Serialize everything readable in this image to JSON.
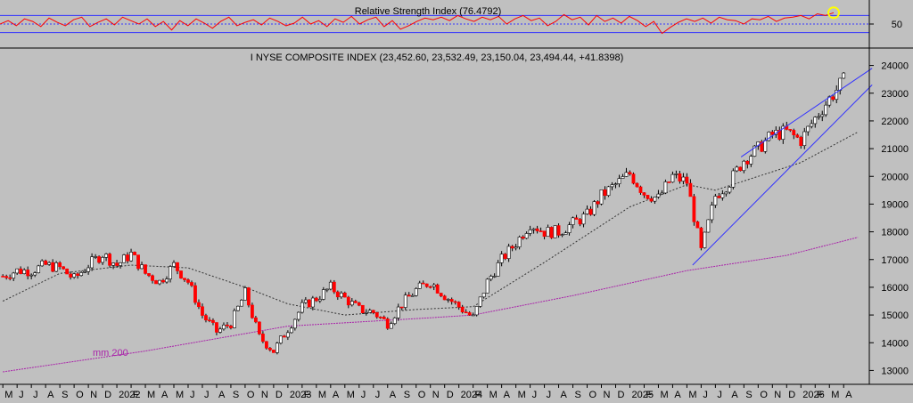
{
  "chart_data": [
    {
      "type": "line",
      "title": "Relative Strength Index (76.4792)",
      "ylim": [
        0,
        100
      ],
      "reference_levels": [
        30,
        50,
        70
      ],
      "y_ticks": [
        "50"
      ],
      "series": [
        {
          "color": "#ff0000",
          "values": [
            50,
            58,
            46,
            62,
            56,
            44,
            64,
            54,
            46,
            60,
            66,
            44,
            54,
            62,
            48,
            66,
            58,
            50,
            62,
            44,
            56,
            36,
            58,
            46,
            62,
            52,
            40,
            56,
            66,
            46,
            54,
            60,
            48,
            64,
            56,
            46,
            52,
            66,
            50,
            58,
            44,
            62,
            54,
            68,
            50,
            60,
            66,
            44,
            58,
            38,
            46,
            56,
            64,
            60,
            66,
            58,
            70,
            62,
            56,
            66,
            60,
            68,
            50,
            62,
            70,
            58,
            64,
            46,
            56,
            72,
            60,
            66,
            48,
            70,
            56,
            64,
            52,
            68,
            58,
            44,
            56,
            28,
            42,
            54,
            62,
            56,
            64,
            52,
            66,
            60,
            58,
            50,
            62,
            60,
            68,
            56,
            64,
            66,
            70,
            62,
            74,
            70,
            76.4792
          ]
        }
      ],
      "highlight": {
        "value": 76.4792,
        "color": "#ffff00"
      }
    },
    {
      "type": "candlestick",
      "title": "I NYSE COMPOSITE INDEX (23,452.60, 23,532.49, 23,150.04, 23,494.44, +41.8398)",
      "ylim": [
        12500,
        24500
      ],
      "y_ticks": [
        "13000",
        "14000",
        "15000",
        "16000",
        "17000",
        "18000",
        "19000",
        "20000",
        "21000",
        "22000",
        "23000",
        "24000"
      ],
      "x_labels": [
        "M",
        "J",
        "J",
        "A",
        "S",
        "O",
        "N",
        "D",
        "2022",
        "F",
        "M",
        "A",
        "M",
        "J",
        "J",
        "A",
        "S",
        "O",
        "N",
        "D",
        "2023",
        "F",
        "M",
        "A",
        "M",
        "J",
        "J",
        "A",
        "S",
        "O",
        "N",
        "D",
        "2024",
        "F",
        "M",
        "A",
        "M",
        "J",
        "J",
        "A",
        "S",
        "O",
        "N",
        "D",
        "2025",
        "F",
        "M",
        "A",
        "M",
        "J",
        "J",
        "A",
        "S",
        "O",
        "N",
        "D",
        "2026",
        "F",
        "M",
        "A"
      ],
      "x_range": [
        -0.2,
        60.8
      ],
      "price_points": [
        [
          0,
          16400
        ],
        [
          1,
          16600
        ],
        [
          2,
          16600
        ],
        [
          3,
          16800
        ],
        [
          4,
          16700
        ],
        [
          5,
          16300
        ],
        [
          6,
          16800
        ],
        [
          7,
          17200
        ],
        [
          8,
          16800
        ],
        [
          9,
          17200
        ],
        [
          10,
          16500
        ],
        [
          11,
          16200
        ],
        [
          12,
          16800
        ],
        [
          13,
          16200
        ],
        [
          14,
          15000
        ],
        [
          15,
          14400
        ],
        [
          16,
          14700
        ],
        [
          17,
          15800
        ],
        [
          18,
          14200
        ],
        [
          19,
          13700
        ],
        [
          20,
          14500
        ],
        [
          21,
          15300
        ],
        [
          22,
          15600
        ],
        [
          23,
          16000
        ],
        [
          24,
          15600
        ],
        [
          25,
          15200
        ],
        [
          26,
          15100
        ],
        [
          27,
          14700
        ],
        [
          28,
          15400
        ],
        [
          29,
          15900
        ],
        [
          30,
          16200
        ],
        [
          31,
          15700
        ],
        [
          32,
          15300
        ],
        [
          33,
          14900
        ],
        [
          34,
          16200
        ],
        [
          35,
          17000
        ],
        [
          36,
          17600
        ],
        [
          37,
          18300
        ],
        [
          38,
          18000
        ],
        [
          39,
          18000
        ],
        [
          40,
          18300
        ],
        [
          41,
          18600
        ],
        [
          42,
          19300
        ],
        [
          43,
          19700
        ],
        [
          44,
          20100
        ],
        [
          45,
          19400
        ],
        [
          46,
          19200
        ],
        [
          47,
          20000
        ],
        [
          48,
          19800
        ],
        [
          49,
          17300
        ],
        [
          50,
          19300
        ],
        [
          51,
          19800
        ],
        [
          52,
          20600
        ],
        [
          53,
          21000
        ],
        [
          54,
          21500
        ],
        [
          55,
          21600
        ],
        [
          56,
          21300
        ],
        [
          57,
          22100
        ],
        [
          58,
          22800
        ],
        [
          59,
          23450
        ]
      ],
      "mm200_label": "mm 200",
      "mm200_points": [
        [
          0,
          12950
        ],
        [
          10,
          13700
        ],
        [
          20,
          14600
        ],
        [
          30,
          14900
        ],
        [
          33,
          15000
        ],
        [
          40,
          15700
        ],
        [
          48,
          16600
        ],
        [
          55,
          17150
        ],
        [
          60,
          17800
        ]
      ],
      "mm50_points": [
        [
          0,
          15500
        ],
        [
          4,
          16500
        ],
        [
          9,
          16800
        ],
        [
          13,
          16700
        ],
        [
          17,
          16000
        ],
        [
          20,
          15400
        ],
        [
          24,
          15000
        ],
        [
          29,
          15200
        ],
        [
          33,
          15300
        ],
        [
          38,
          16900
        ],
        [
          44,
          18900
        ],
        [
          48,
          19700
        ],
        [
          50,
          19500
        ],
        [
          56,
          20500
        ],
        [
          60,
          21600
        ]
      ],
      "trendlines": [
        {
          "from": [
            48.4,
            16800
          ],
          "to": [
            61,
            23300
          ]
        },
        {
          "from": [
            51.8,
            20700
          ],
          "to": [
            61,
            23900
          ]
        }
      ],
      "colors": {
        "up": "#ffffff",
        "down": "#ff0000",
        "wick": "#000000",
        "mm200": "#aa22aa",
        "mm50": "#333333",
        "trendline": "#3333ff",
        "reference": "#3333ff"
      }
    }
  ]
}
